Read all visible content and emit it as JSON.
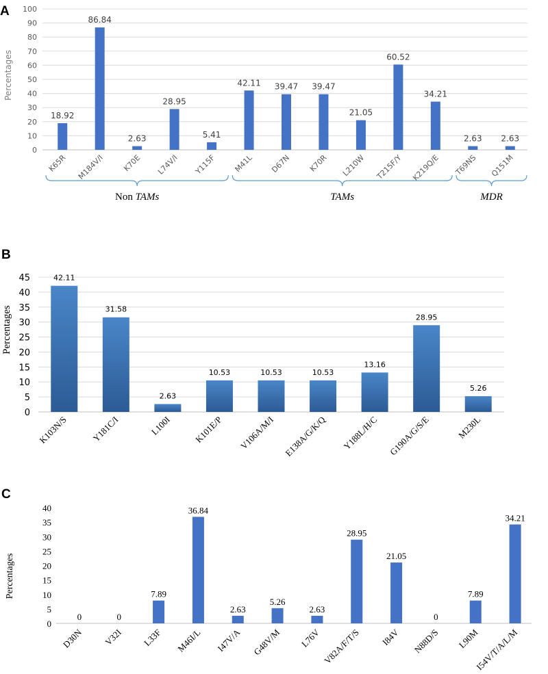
{
  "chart_data": [
    {
      "panel": "A",
      "type": "bar",
      "title": "",
      "xlabel": "",
      "ylabel": "Percentages",
      "ylim": [
        0,
        100
      ],
      "yticks": [
        0,
        10,
        20,
        30,
        40,
        50,
        60,
        70,
        80,
        90,
        100
      ],
      "grid": true,
      "bar_color": "#4472c4",
      "categories": [
        "K65R",
        "M184V/I",
        "K70E",
        "L74V/I",
        "Y115F",
        "M41L",
        "D67N",
        "K70R",
        "L210W",
        "T215F/Y",
        "K219Q/E",
        "T69NS",
        "Q151M"
      ],
      "values": [
        18.92,
        86.84,
        2.63,
        28.95,
        5.41,
        42.11,
        39.47,
        39.47,
        21.05,
        60.52,
        34.21,
        2.63,
        2.63
      ],
      "labels": [
        "18.92",
        "86.84",
        "2.63",
        "28.95",
        "5.41",
        "42.11",
        "39.47",
        "39.47",
        "21.05",
        "60.52",
        "34.21",
        "2.63",
        "2.63"
      ],
      "groups": [
        {
          "label_plain": "Non ",
          "label_italic": "TAMs",
          "from": 0,
          "to": 4
        },
        {
          "label_plain": "",
          "label_italic": "TAMs",
          "from": 5,
          "to": 10
        },
        {
          "label_plain": "",
          "label_italic": "MDR",
          "from": 11,
          "to": 12
        }
      ]
    },
    {
      "panel": "B",
      "type": "bar",
      "title": "",
      "xlabel": "",
      "ylabel": "Percentages",
      "ylim": [
        0,
        45
      ],
      "yticks": [
        0,
        5,
        10,
        15,
        20,
        25,
        30,
        35,
        40,
        45
      ],
      "grid": true,
      "bar_color_top": "#4a86c8",
      "bar_color_bottom": "#2c5b95",
      "categories": [
        "K103N/S",
        "Y181C/I",
        "L100I",
        "K101E/P",
        "V106A/M/I",
        "E138A/G/K/Q",
        "Y188L/H/C",
        "G190A/G/S/E",
        "M230L"
      ],
      "values": [
        42.11,
        31.58,
        2.63,
        10.53,
        10.53,
        10.53,
        13.16,
        28.95,
        5.26
      ],
      "labels": [
        "42.11",
        "31.58",
        "2.63",
        "10.53",
        "10.53",
        "10.53",
        "13.16",
        "28.95",
        "5.26"
      ]
    },
    {
      "panel": "C",
      "type": "bar",
      "title": "",
      "xlabel": "",
      "ylabel": "Percentages",
      "ylim": [
        0,
        40
      ],
      "yticks": [
        0,
        5,
        10,
        15,
        20,
        25,
        30,
        35,
        40
      ],
      "grid": false,
      "bar_color": "#4472c4",
      "categories": [
        "D30N",
        "V32I",
        "L33F",
        "M46I/L",
        "I47V/A",
        "G48V/M",
        "L76V",
        "V82A/F/T/S",
        "I84V",
        "N88D/S",
        "L90M",
        "I54V/T/A/L/M"
      ],
      "values": [
        0,
        0,
        7.89,
        36.84,
        2.63,
        5.26,
        2.63,
        28.95,
        21.05,
        0,
        7.89,
        34.21
      ],
      "labels": [
        "0",
        "0",
        "7.89",
        "36.84",
        "2.63",
        "5.26",
        "2.63",
        "28.95",
        "21.05",
        "0",
        "7.89",
        "34.21"
      ]
    }
  ]
}
